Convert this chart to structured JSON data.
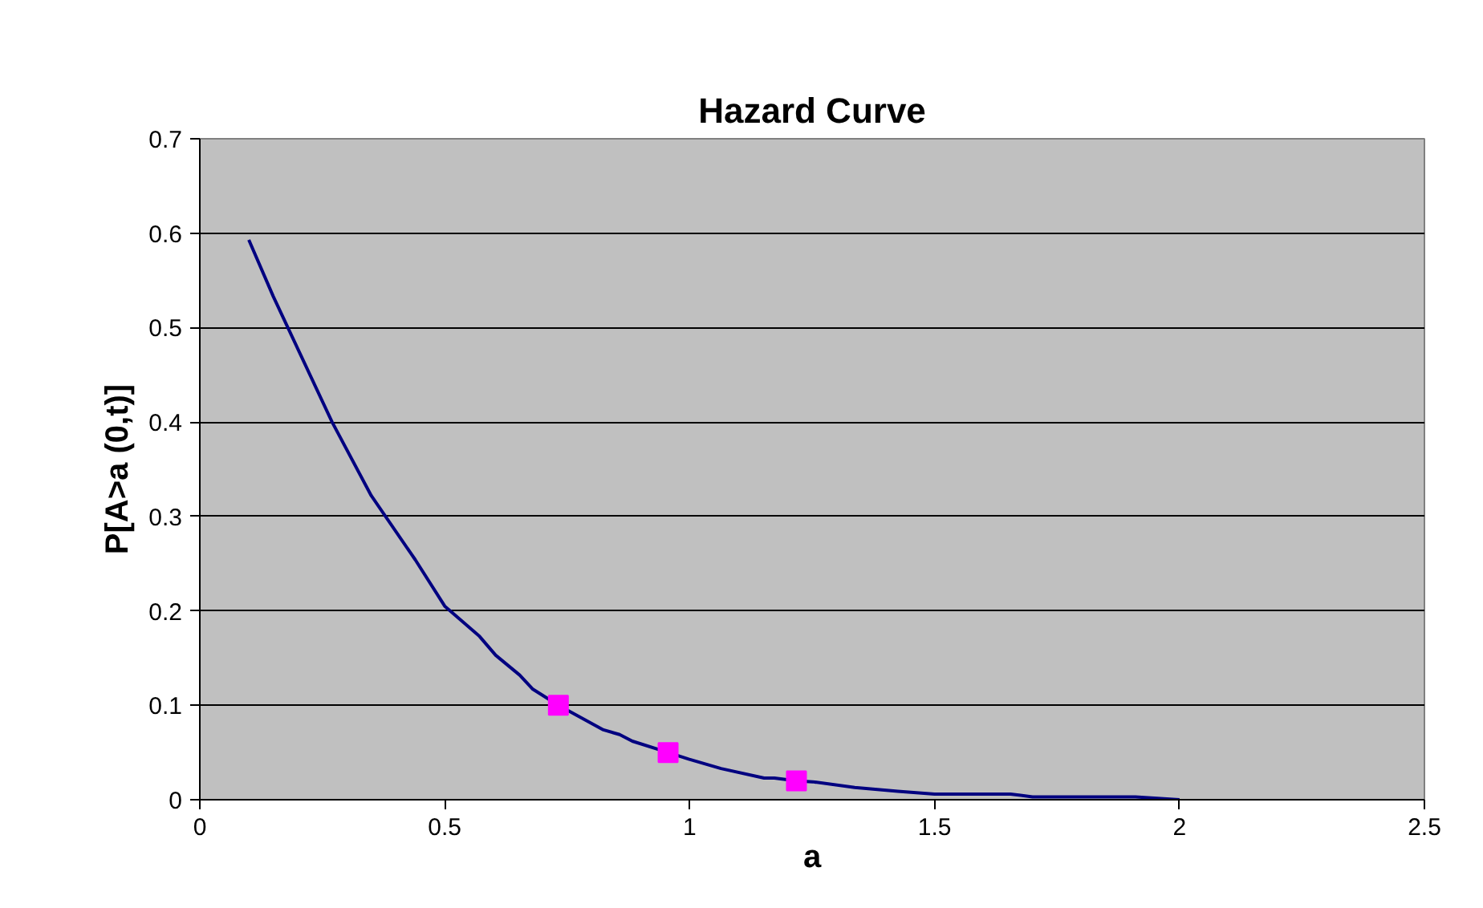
{
  "chart_data": {
    "type": "line",
    "title": "Hazard Curve",
    "xlabel": "a",
    "ylabel": "P[A>a (0,t)]",
    "xlim": [
      0,
      2.5
    ],
    "xticks": [
      0,
      0.5,
      1,
      1.5,
      2,
      2.5
    ],
    "ylim": [
      0,
      0.7
    ],
    "yticks": [
      0,
      0.1,
      0.2,
      0.3,
      0.4,
      0.5,
      0.6,
      0.7
    ],
    "grid": "y",
    "series": [
      {
        "color": "#000080",
        "marker": "none",
        "x": [
          0.1,
          0.15,
          0.27,
          0.35,
          0.44,
          0.5,
          0.571,
          0.604,
          0.653,
          0.68,
          0.732,
          0.824,
          0.857,
          0.883,
          0.956,
          0.998,
          1.064,
          1.152,
          1.173,
          1.218,
          1.251,
          1.337,
          1.425,
          1.5,
          1.655,
          1.7,
          1.91,
          2.0
        ],
        "values": [
          0.593,
          0.533,
          0.4,
          0.322,
          0.254,
          0.205,
          0.173,
          0.153,
          0.132,
          0.117,
          0.1,
          0.074,
          0.069,
          0.062,
          0.05,
          0.043,
          0.033,
          0.023,
          0.023,
          0.02,
          0.019,
          0.013,
          0.009,
          0.006,
          0.006,
          0.003,
          0.003,
          0.0
        ]
      },
      {
        "type": "scatter",
        "color": "#ff00ff",
        "marker": "square",
        "x": [
          0.732,
          0.956,
          1.218
        ],
        "values": [
          0.1,
          0.05,
          0.02
        ]
      }
    ]
  }
}
